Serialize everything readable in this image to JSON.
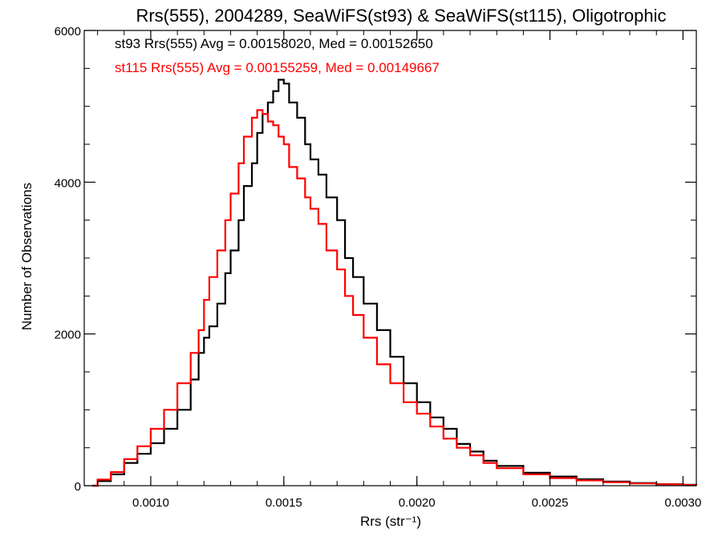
{
  "chart_data": {
    "type": "line",
    "title": "Rrs(555), 2004289, SeaWiFS(st93) & SeaWiFS(st115), Oligotrophic",
    "xlabel": "Rrs (str⁻¹)",
    "ylabel": "Number of Observations",
    "xlim": [
      0.00075,
      0.00305
    ],
    "ylim": [
      0,
      6000
    ],
    "xticks": [
      0.001,
      0.0015,
      0.002,
      0.0025,
      0.003
    ],
    "xtick_labels": [
      "0.0010",
      "0.0015",
      "0.0020",
      "0.0025",
      "0.0030"
    ],
    "yticks": [
      0,
      2000,
      4000,
      6000
    ],
    "ytick_labels": [
      "0",
      "2000",
      "4000",
      "6000"
    ],
    "grid": false,
    "legend": "top-left",
    "series": [
      {
        "name": "st93",
        "color": "#000000",
        "annotation": "st93 Rrs(555) Avg = 0.00158020, Med = 0.00152650",
        "x": [
          0.00078,
          0.0008,
          0.00085,
          0.0009,
          0.00095,
          0.001,
          0.00105,
          0.0011,
          0.00115,
          0.00118,
          0.0012,
          0.00122,
          0.00125,
          0.00128,
          0.0013,
          0.00133,
          0.00135,
          0.00138,
          0.0014,
          0.00142,
          0.00144,
          0.00146,
          0.00148,
          0.0015,
          0.00152,
          0.00155,
          0.00158,
          0.0016,
          0.00163,
          0.00166,
          0.0017,
          0.00173,
          0.00176,
          0.0018,
          0.00185,
          0.0019,
          0.00195,
          0.002,
          0.00205,
          0.0021,
          0.00215,
          0.0022,
          0.00225,
          0.0023,
          0.0024,
          0.0025,
          0.0026,
          0.0027,
          0.0028,
          0.0029,
          0.003,
          0.00305
        ],
        "values": [
          0,
          60,
          150,
          300,
          420,
          560,
          750,
          1000,
          1400,
          1750,
          1950,
          2100,
          2400,
          2800,
          3100,
          3500,
          3950,
          4250,
          4650,
          4900,
          5050,
          5200,
          5350,
          5300,
          5050,
          4850,
          4500,
          4300,
          4100,
          3800,
          3500,
          3000,
          2750,
          2400,
          2050,
          1700,
          1350,
          1100,
          900,
          750,
          550,
          450,
          330,
          260,
          170,
          120,
          85,
          55,
          35,
          20,
          12,
          8
        ]
      },
      {
        "name": "st115",
        "color": "#ff0000",
        "annotation": "st115 Rrs(555) Avg = 0.00155259, Med = 0.00149667",
        "x": [
          0.00078,
          0.0008,
          0.00085,
          0.0009,
          0.00095,
          0.001,
          0.00105,
          0.0011,
          0.00115,
          0.00118,
          0.0012,
          0.00122,
          0.00125,
          0.00128,
          0.0013,
          0.00133,
          0.00135,
          0.00138,
          0.0014,
          0.00142,
          0.00144,
          0.00146,
          0.00148,
          0.0015,
          0.00152,
          0.00155,
          0.00158,
          0.0016,
          0.00163,
          0.00166,
          0.0017,
          0.00173,
          0.00176,
          0.0018,
          0.00185,
          0.0019,
          0.00195,
          0.002,
          0.00205,
          0.0021,
          0.00215,
          0.0022,
          0.00225,
          0.0023,
          0.0024,
          0.0025,
          0.0026,
          0.0027,
          0.0028,
          0.0029,
          0.003,
          0.00305
        ],
        "values": [
          0,
          80,
          180,
          350,
          520,
          750,
          1000,
          1350,
          1750,
          2050,
          2450,
          2750,
          3100,
          3500,
          3850,
          4250,
          4600,
          4850,
          4950,
          4900,
          4800,
          4750,
          4600,
          4500,
          4200,
          4050,
          3800,
          3650,
          3450,
          3100,
          2850,
          2500,
          2250,
          1950,
          1600,
          1350,
          1100,
          950,
          780,
          620,
          500,
          400,
          300,
          230,
          150,
          100,
          70,
          45,
          30,
          18,
          10,
          6
        ]
      }
    ]
  }
}
